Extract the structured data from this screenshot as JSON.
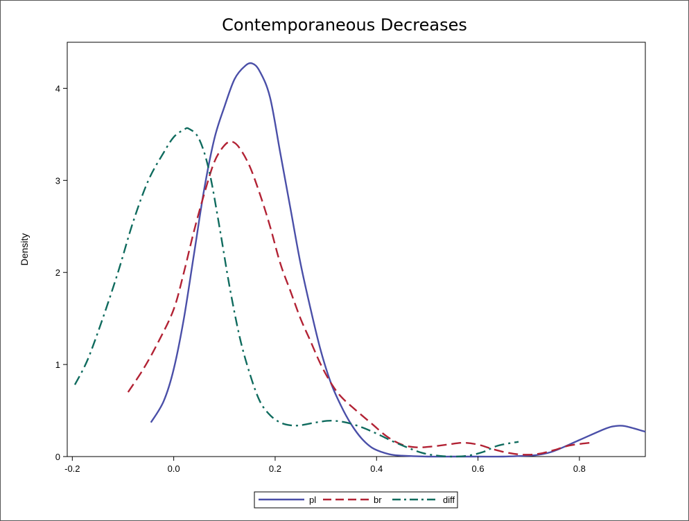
{
  "chart_data": {
    "type": "line",
    "title": "Contemporaneous Decreases",
    "xlabel": "",
    "ylabel": "Density",
    "xlim": [
      -0.21,
      0.93
    ],
    "ylim": [
      0,
      4.5
    ],
    "xticks": [
      -0.2,
      0.0,
      0.2,
      0.4,
      0.6,
      0.8
    ],
    "xtick_labels": [
      "-0.2",
      "0.0",
      "0.2",
      "0.4",
      "0.6",
      "0.8"
    ],
    "yticks": [
      0,
      1,
      2,
      3,
      4
    ],
    "ytick_labels": [
      "0",
      "1",
      "2",
      "3",
      "4"
    ],
    "grid": false,
    "legend_position": "bottom",
    "series": [
      {
        "name": "pl",
        "color": "#4a4fa8",
        "dash": "solid",
        "x": [
          -0.045,
          -0.02,
          0.0,
          0.02,
          0.04,
          0.06,
          0.08,
          0.1,
          0.12,
          0.14,
          0.155,
          0.17,
          0.19,
          0.21,
          0.23,
          0.25,
          0.27,
          0.29,
          0.31,
          0.33,
          0.35,
          0.37,
          0.39,
          0.41,
          0.43,
          0.45,
          0.5,
          0.55,
          0.6,
          0.65,
          0.7,
          0.72,
          0.75,
          0.8,
          0.85,
          0.87,
          0.89,
          0.93
        ],
        "y": [
          0.37,
          0.6,
          0.95,
          1.5,
          2.2,
          2.9,
          3.45,
          3.8,
          4.1,
          4.24,
          4.27,
          4.18,
          3.9,
          3.3,
          2.7,
          2.1,
          1.6,
          1.15,
          0.8,
          0.55,
          0.35,
          0.2,
          0.1,
          0.05,
          0.02,
          0.01,
          0.0,
          0.0,
          0.0,
          0.0,
          0.01,
          0.02,
          0.06,
          0.18,
          0.3,
          0.33,
          0.33,
          0.27
        ]
      },
      {
        "name": "br",
        "color": "#b22234",
        "dash": "dashed",
        "x": [
          -0.09,
          -0.06,
          -0.03,
          0.0,
          0.02,
          0.04,
          0.06,
          0.08,
          0.1,
          0.115,
          0.13,
          0.15,
          0.17,
          0.19,
          0.21,
          0.23,
          0.25,
          0.27,
          0.29,
          0.31,
          0.33,
          0.36,
          0.39,
          0.42,
          0.45,
          0.48,
          0.51,
          0.54,
          0.57,
          0.6,
          0.63,
          0.66,
          0.69,
          0.72,
          0.75,
          0.78,
          0.82
        ],
        "y": [
          0.7,
          0.95,
          1.25,
          1.6,
          2.0,
          2.45,
          2.85,
          3.2,
          3.38,
          3.42,
          3.35,
          3.15,
          2.85,
          2.5,
          2.1,
          1.8,
          1.5,
          1.25,
          1.0,
          0.8,
          0.65,
          0.5,
          0.36,
          0.22,
          0.13,
          0.1,
          0.11,
          0.13,
          0.15,
          0.13,
          0.08,
          0.04,
          0.02,
          0.03,
          0.07,
          0.12,
          0.15
        ]
      },
      {
        "name": "diff",
        "color": "#0f6b5e",
        "dash": "dashdot",
        "x": [
          -0.195,
          -0.17,
          -0.14,
          -0.11,
          -0.08,
          -0.05,
          -0.02,
          0.0,
          0.02,
          0.03,
          0.05,
          0.07,
          0.09,
          0.11,
          0.13,
          0.15,
          0.17,
          0.19,
          0.21,
          0.23,
          0.25,
          0.28,
          0.31,
          0.34,
          0.37,
          0.4,
          0.43,
          0.46,
          0.49,
          0.52,
          0.55,
          0.58,
          0.61,
          0.64,
          0.68
        ],
        "y": [
          0.78,
          1.05,
          1.5,
          2.0,
          2.55,
          3.0,
          3.3,
          3.47,
          3.55,
          3.56,
          3.45,
          3.1,
          2.5,
          1.85,
          1.3,
          0.9,
          0.6,
          0.45,
          0.37,
          0.34,
          0.34,
          0.37,
          0.39,
          0.37,
          0.32,
          0.25,
          0.17,
          0.1,
          0.04,
          0.01,
          0.0,
          0.01,
          0.05,
          0.12,
          0.16
        ]
      }
    ]
  }
}
